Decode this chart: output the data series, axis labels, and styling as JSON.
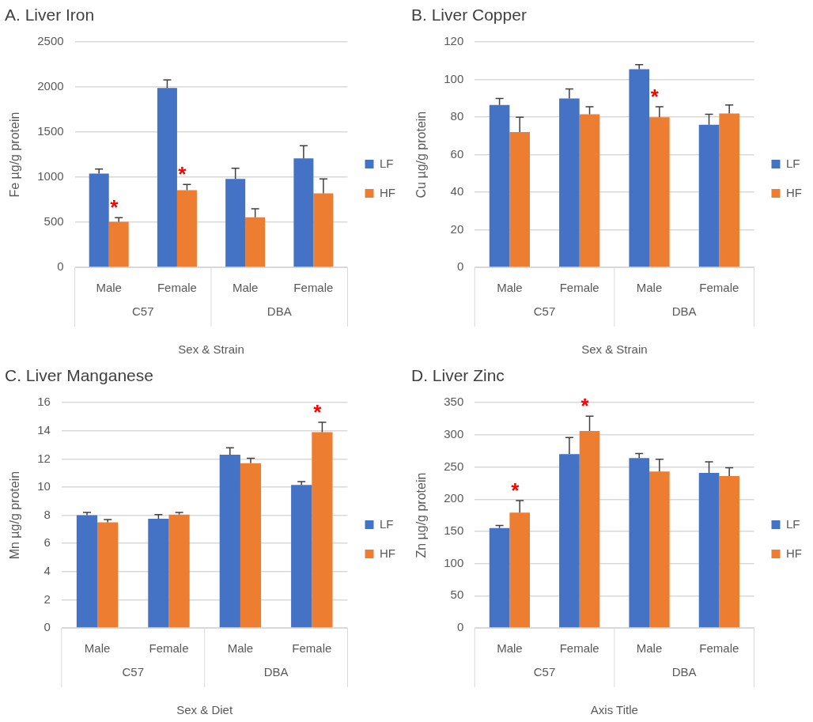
{
  "chart_data": [
    {
      "type": "bar",
      "title": "A. Liver Iron",
      "xlabel": "Sex & Strain",
      "ylabel": "Fe µg/g protein",
      "categories": [
        "Male",
        "Female",
        "Male",
        "Female"
      ],
      "annotations": [
        "C57",
        "DBA"
      ],
      "ylim": [
        0,
        2500
      ],
      "yticks": [
        0,
        500,
        1000,
        1500,
        2000,
        2500
      ],
      "grid": "y",
      "legend": "right",
      "series": [
        {
          "name": "LF",
          "color": "#4472c4",
          "values": [
            1040,
            1990,
            980,
            1210
          ],
          "errors": [
            [
              1040,
              1090
            ],
            [
              1990,
              2080
            ],
            [
              980,
              1100
            ],
            [
              1210,
              1350
            ]
          ]
        },
        {
          "name": "HF",
          "color": "#ed7d31",
          "values": [
            505,
            855,
            555,
            820
          ],
          "errors": [
            [
              505,
              550
            ],
            [
              855,
              920
            ],
            [
              555,
              650
            ],
            [
              820,
              980
            ]
          ],
          "value_labels": [
            "*",
            "*",
            null,
            null
          ]
        }
      ]
    },
    {
      "type": "bar",
      "title": "B. Liver Copper",
      "xlabel": "Sex & Strain",
      "ylabel": "Cu µg/g protein",
      "categories": [
        "Male",
        "Female",
        "Male",
        "Female"
      ],
      "annotations": [
        "C57",
        "DBA"
      ],
      "ylim": [
        0,
        120
      ],
      "yticks": [
        0,
        20,
        40,
        60,
        80,
        100,
        120
      ],
      "grid": "y",
      "legend": "right",
      "series": [
        {
          "name": "LF",
          "color": "#4472c4",
          "values": [
            86.5,
            90,
            105.5,
            76
          ],
          "errors": [
            [
              86.5,
              90
            ],
            [
              90,
              95
            ],
            [
              105.5,
              108
            ],
            [
              76,
              81.5
            ]
          ]
        },
        {
          "name": "HF",
          "color": "#ed7d31",
          "values": [
            72,
            81.5,
            80,
            82
          ],
          "errors": [
            [
              72,
              80
            ],
            [
              81.5,
              85.5
            ],
            [
              80,
              85.5
            ],
            [
              82,
              86.5
            ]
          ],
          "value_labels": [
            null,
            null,
            "*",
            null
          ]
        }
      ]
    },
    {
      "type": "bar",
      "title": "C. Liver Manganese",
      "xlabel": "Sex & Diet",
      "ylabel": "Mn µg/g protein",
      "categories": [
        "Male",
        "Female",
        "Male",
        "Female"
      ],
      "annotations": [
        "C57",
        "DBA"
      ],
      "ylim": [
        0,
        16
      ],
      "yticks": [
        0,
        2,
        4,
        6,
        8,
        10,
        12,
        14,
        16
      ],
      "grid": "y",
      "legend": "right",
      "series": [
        {
          "name": "LF",
          "color": "#4472c4",
          "values": [
            8,
            7.75,
            12.3,
            10.15
          ],
          "errors": [
            [
              8,
              8.2
            ],
            [
              7.75,
              8.05
            ],
            [
              12.3,
              12.8
            ],
            [
              10.15,
              10.4
            ]
          ]
        },
        {
          "name": "HF",
          "color": "#ed7d31",
          "values": [
            7.5,
            8.05,
            11.7,
            13.9
          ],
          "errors": [
            [
              7.5,
              7.7
            ],
            [
              8.05,
              8.2
            ],
            [
              11.7,
              12.05
            ],
            [
              13.9,
              14.6
            ]
          ],
          "value_labels": [
            null,
            null,
            null,
            "*"
          ]
        }
      ]
    },
    {
      "type": "bar",
      "title": "D. Liver Zinc",
      "xlabel": "Axis Title",
      "ylabel": "Zn µg/g protein",
      "categories": [
        "Male",
        "Female",
        "Male",
        "Female"
      ],
      "annotations": [
        "C57",
        "DBA"
      ],
      "ylim": [
        0,
        350
      ],
      "yticks": [
        0,
        50,
        100,
        150,
        200,
        250,
        300,
        350
      ],
      "grid": "y",
      "legend": "right",
      "series": [
        {
          "name": "LF",
          "color": "#4472c4",
          "values": [
            155,
            270,
            264,
            241
          ],
          "errors": [
            [
              155,
              159
            ],
            [
              270,
              296
            ],
            [
              264,
              271
            ],
            [
              241,
              258
            ]
          ]
        },
        {
          "name": "HF",
          "color": "#ed7d31",
          "values": [
            179,
            306,
            243,
            236
          ],
          "errors": [
            [
              179,
              198
            ],
            [
              306,
              329
            ],
            [
              243,
              262
            ],
            [
              236,
              249
            ]
          ],
          "value_labels": [
            "*",
            "*",
            null,
            null
          ]
        }
      ]
    }
  ]
}
